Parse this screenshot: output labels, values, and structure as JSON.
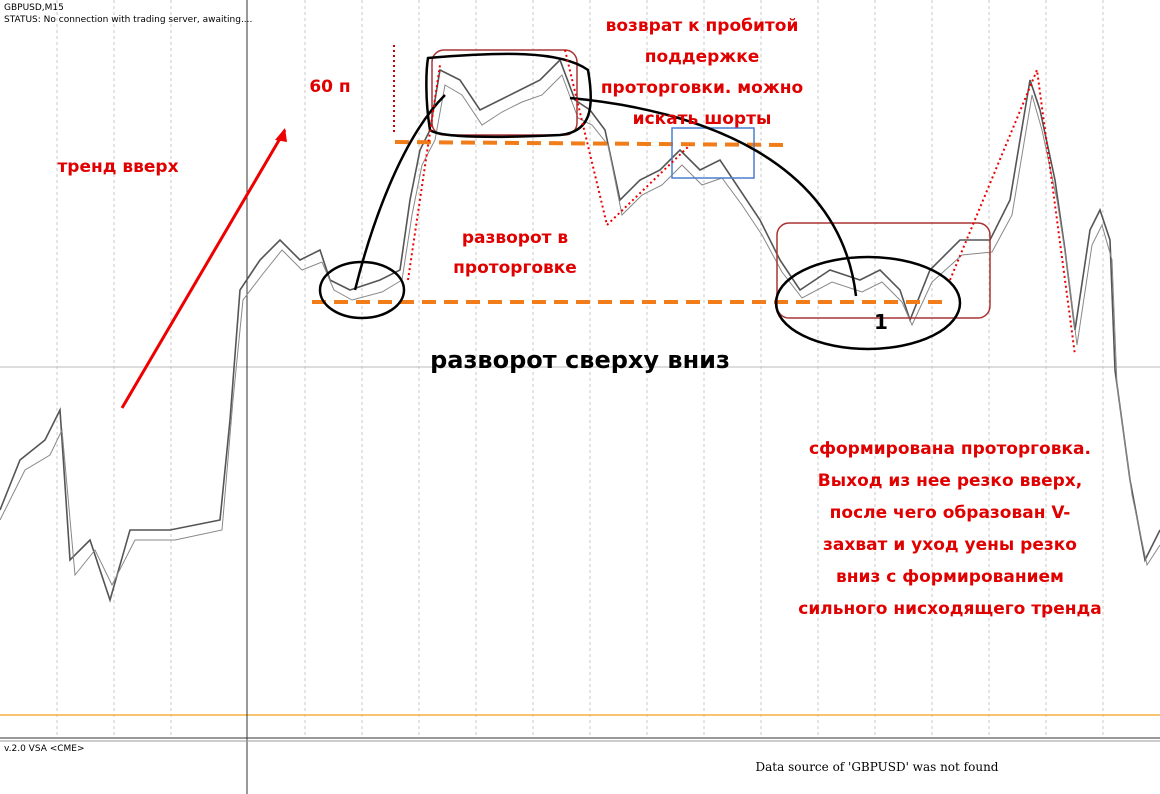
{
  "header": {
    "symbol": "GBPUSD,M15",
    "status": "STATUS:   No connection with trading server, awaiting...."
  },
  "annotations": {
    "trend_up": "тренд вверх",
    "pips": "60 п",
    "retest": [
      "возврат к пробитой",
      "поддержке",
      "проторговки. можно",
      "искать шорты"
    ],
    "reversal_range": [
      "разворот в",
      "проторговке"
    ],
    "title": "разворот сверху вниз",
    "number": "1",
    "summary": [
      "сформирована проторговка.",
      "Выход из нее резко вверх,",
      "после чего образован V-",
      "захват и уход уены резко",
      "вниз с формированием",
      "сильного нисходящего тренда"
    ]
  },
  "indicator": {
    "label": "v.2.0 VSA <CME>",
    "message": "Data source of 'GBPUSD' was not found"
  }
}
